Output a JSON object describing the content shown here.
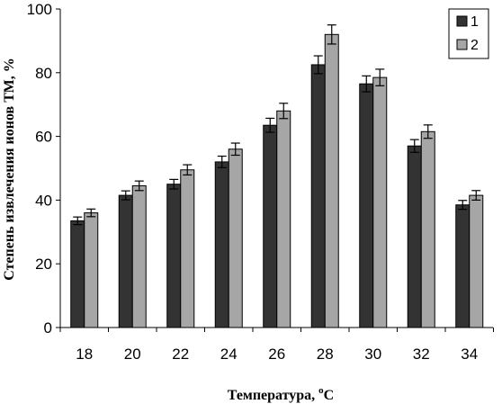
{
  "chart_data": {
    "type": "bar",
    "categories": [
      "18",
      "20",
      "22",
      "24",
      "26",
      "28",
      "30",
      "32",
      "34"
    ],
    "series": [
      {
        "name": "1",
        "color": "#333333",
        "values": [
          33.5,
          41.5,
          45,
          52,
          63.5,
          82.5,
          76.5,
          57,
          38.5
        ],
        "errors": [
          1.2,
          1.4,
          1.5,
          1.8,
          2.2,
          2.8,
          2.5,
          2.0,
          1.4
        ]
      },
      {
        "name": "2",
        "color": "#a6a6a6",
        "values": [
          36,
          44.5,
          49.5,
          56,
          68,
          92,
          78.5,
          61.5,
          41.5
        ],
        "errors": [
          1.2,
          1.5,
          1.6,
          1.9,
          2.4,
          3.0,
          2.6,
          2.1,
          1.5
        ]
      }
    ],
    "xlabel_main": "Температура, ",
    "xlabel_sup": "o",
    "xlabel_unit": "С",
    "ylabel": "Степень извлечения ионов ТМ, %",
    "ylim": [
      0,
      100
    ],
    "yticks": [
      "0",
      "20",
      "40",
      "60",
      "80",
      "100"
    ],
    "grid": false,
    "legend_position": "top-right"
  }
}
